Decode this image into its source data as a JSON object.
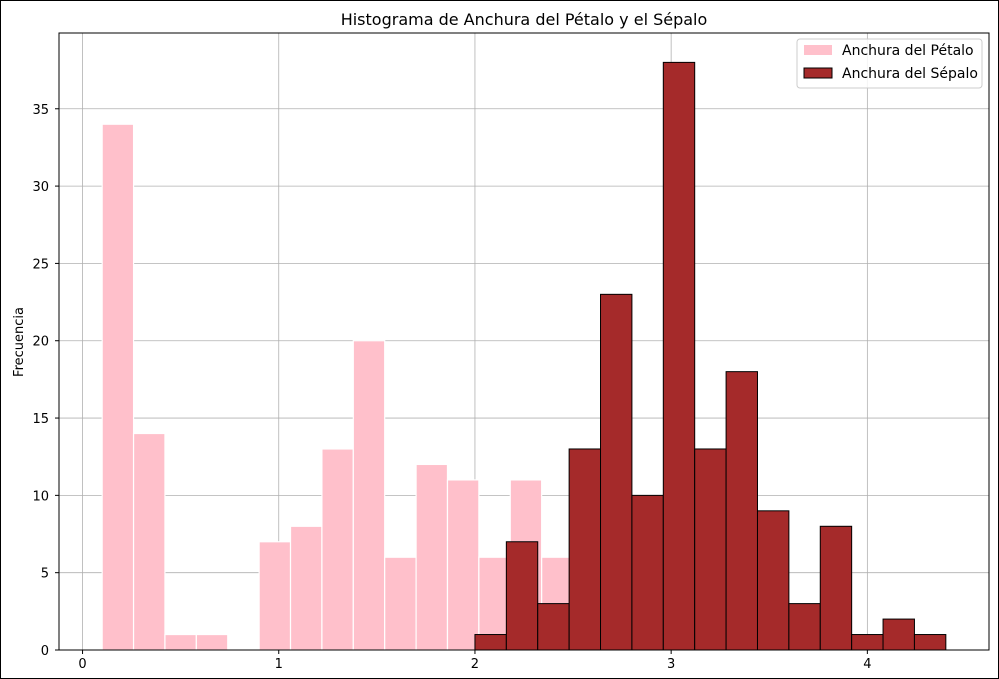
{
  "chart_data": {
    "type": "bar",
    "title": "Histograma de Anchura del Pétalo y el Sépalo",
    "xlabel": "",
    "ylabel": "Frecuencia",
    "xlim": [
      -0.12,
      4.62
    ],
    "ylim": [
      0,
      39.9
    ],
    "xticks": [
      0,
      1,
      2,
      3,
      4
    ],
    "yticks": [
      0,
      5,
      10,
      15,
      20,
      25,
      30,
      35
    ],
    "grid": true,
    "legend_position": "top-right",
    "series": [
      {
        "name": "Anchura del Pétalo",
        "color": "#ffc0cb",
        "edgecolor": "#ffffff",
        "bins": [
          0.1,
          0.26,
          0.42,
          0.58,
          0.74,
          0.9,
          1.06,
          1.22,
          1.38,
          1.54,
          1.7,
          1.86,
          2.02,
          2.18,
          2.34,
          2.5
        ],
        "values": [
          34,
          14,
          1,
          1,
          0,
          7,
          8,
          13,
          20,
          6,
          12,
          11,
          6,
          11,
          6
        ]
      },
      {
        "name": "Anchura del Sépalo",
        "color": "#a52a2a",
        "edgecolor": "#000000",
        "bins": [
          2.0,
          2.16,
          2.32,
          2.48,
          2.64,
          2.8,
          2.96,
          3.12,
          3.28,
          3.44,
          3.6,
          3.76,
          3.92,
          4.08,
          4.24,
          4.4
        ],
        "values": [
          1,
          7,
          3,
          13,
          23,
          10,
          38,
          13,
          18,
          9,
          3,
          8,
          1,
          2,
          1
        ]
      }
    ]
  }
}
